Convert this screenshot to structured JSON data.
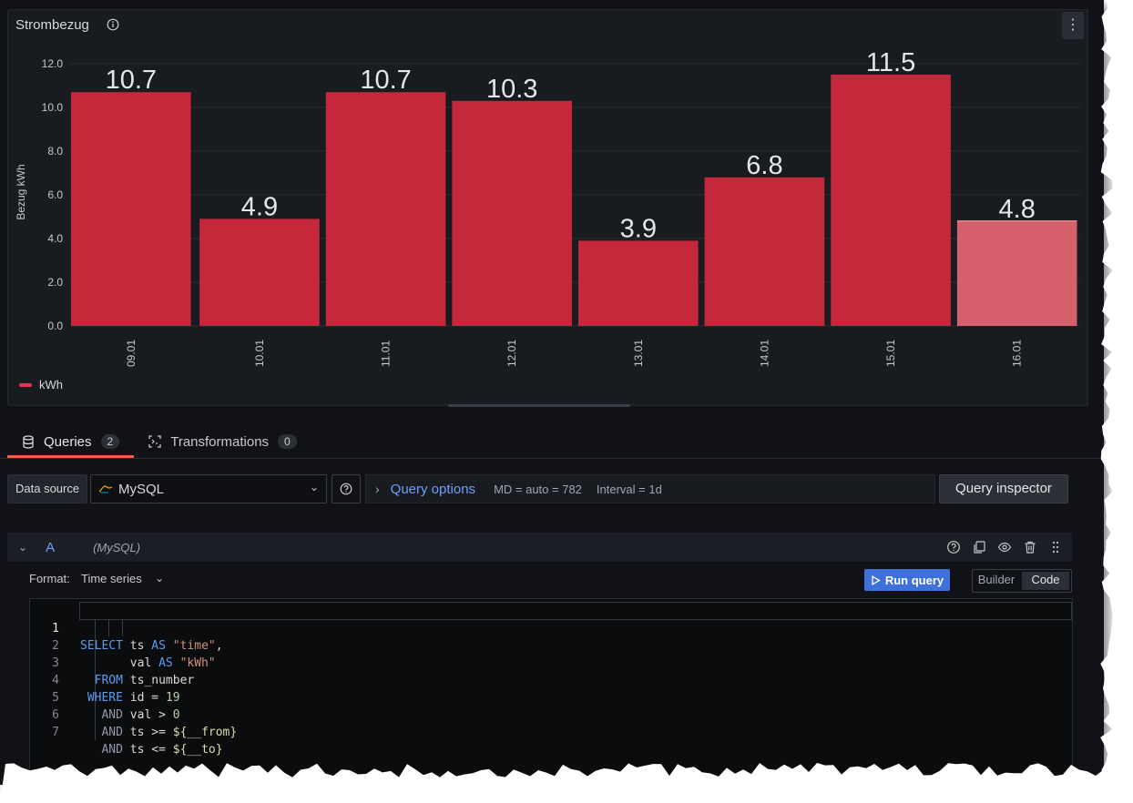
{
  "panel": {
    "title": "Strombezug",
    "menu_label": "⋮"
  },
  "chart_data": {
    "type": "bar",
    "categories": [
      "09.01",
      "10.01",
      "11.01",
      "12.01",
      "13.01",
      "14.01",
      "15.01",
      "16.01"
    ],
    "values": [
      10.7,
      4.9,
      10.7,
      10.3,
      3.9,
      6.8,
      11.5,
      4.8
    ],
    "value_labels": [
      "10.7",
      "4.9",
      "10.7",
      "10.3",
      "3.9",
      "6.8",
      "11.5",
      "4.8"
    ],
    "ylabel": "Bezug kWh",
    "ylim": [
      0,
      12.5
    ],
    "yticks": [
      "0.0",
      "2.0",
      "4.0",
      "6.0",
      "8.0",
      "10.0",
      "12.0"
    ],
    "legend": "kWh",
    "legend_position": "bottom-left",
    "grid": true,
    "colors": {
      "bar": "#c4283a",
      "bar_highlight": "#d6606c"
    },
    "highlighted_index": 7
  },
  "tabs": [
    {
      "label": "Queries",
      "count": "2",
      "active": true
    },
    {
      "label": "Transformations",
      "count": "0",
      "active": false
    }
  ],
  "toolbar": {
    "data_source_label": "Data source",
    "data_source_value": "MySQL",
    "query_options_title": "Query options",
    "md": "MD = auto = 782",
    "interval": "Interval = 1d",
    "query_inspector": "Query inspector"
  },
  "query": {
    "ref": "A",
    "datasource": "(MySQL)",
    "format_label": "Format:",
    "format_value": "Time series",
    "run_label": "Run query",
    "builder_label": "Builder",
    "code_label": "Code",
    "line_numbers": [
      "1",
      "2",
      "3",
      "4",
      "5",
      "6",
      "7"
    ]
  },
  "colors": {
    "background": "#111217",
    "accent": "#6e9fff",
    "primary_button": "#3d71d9",
    "tab_underline": "#f55f3e"
  }
}
